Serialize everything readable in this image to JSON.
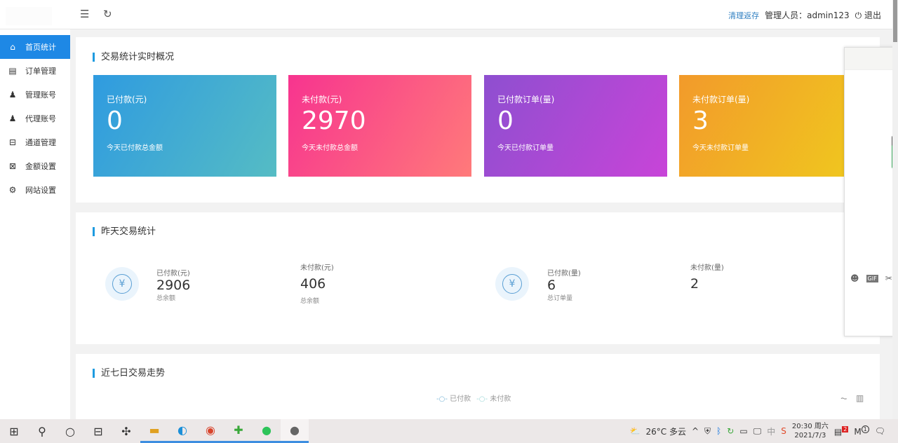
{
  "header": {
    "menu_icon": "indent-icon",
    "refresh_icon": "refresh-icon",
    "clear_cache": "清理返存",
    "admin_label": "管理人员：admin123",
    "logout": "退出"
  },
  "sidebar": {
    "items": [
      {
        "label": "首页统计",
        "icon": "home-icon",
        "active": true
      },
      {
        "label": "订单管理",
        "icon": "clipboard-icon"
      },
      {
        "label": "管理账号",
        "icon": "user-gear-icon"
      },
      {
        "label": "代理账号",
        "icon": "user-gear-icon"
      },
      {
        "label": "通道管理",
        "icon": "channel-icon"
      },
      {
        "label": "金额设置",
        "icon": "money-icon"
      },
      {
        "label": "网站设置",
        "icon": "gear-icon"
      }
    ]
  },
  "realtime": {
    "title": "交易统计实时概况",
    "cards": [
      {
        "label": "已付款(元)",
        "value": "0",
        "sub": "今天已付款总金额",
        "colors": [
          "#2f9be0",
          "#55bcc4"
        ]
      },
      {
        "label": "未付款(元)",
        "value": "2970",
        "sub": "今天未付款总金额",
        "colors": [
          "#f7348f",
          "#ff7a7a"
        ]
      },
      {
        "label": "已付款订单(量)",
        "value": "0",
        "sub": "今天已付款订单量",
        "colors": [
          "#8e4fd0",
          "#c844d8"
        ]
      },
      {
        "label": "未付款订单(量)",
        "value": "3",
        "sub": "今天未付款订单量",
        "colors": [
          "#f29a2b",
          "#f0c91e"
        ]
      }
    ]
  },
  "yesterday": {
    "title": "昨天交易统计",
    "stats": [
      {
        "label": "已付款(元)",
        "value": "2906",
        "sub": "总余额"
      },
      {
        "label": "未付款(元)",
        "value": "406",
        "sub": "总余额"
      },
      {
        "label": "已付款(量)",
        "value": "6",
        "sub": "总订单量"
      },
      {
        "label": "未付款(量)",
        "value": "2",
        "sub": ""
      }
    ]
  },
  "trend": {
    "title": "近七日交易走势",
    "legend": [
      "已付款",
      "未付款"
    ],
    "legend_colors": [
      "#7fb8d8",
      "#9fd8d8"
    ]
  },
  "taskbar": {
    "weather": "26°C 多云",
    "ime": "中",
    "time": "20:30 周六",
    "date": "2021/7/3",
    "badge1": "2",
    "badge2": "1"
  }
}
